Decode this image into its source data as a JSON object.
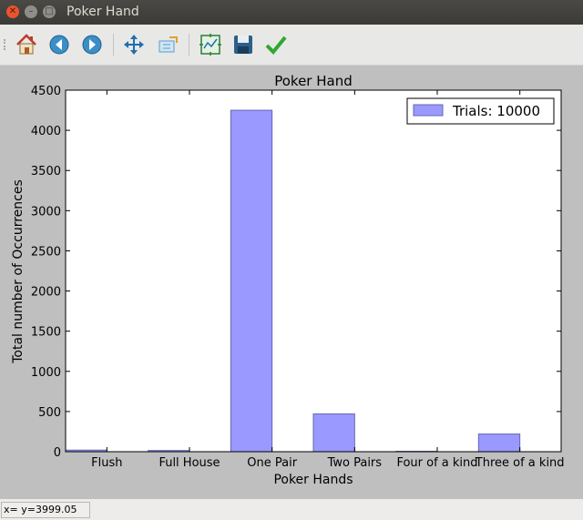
{
  "window": {
    "title": "Poker Hand"
  },
  "toolbar": {
    "buttons": [
      {
        "name": "home-button",
        "icon": "home-icon"
      },
      {
        "name": "back-button",
        "icon": "arrow-left-icon"
      },
      {
        "name": "forward-button",
        "icon": "arrow-right-icon"
      },
      {
        "name": "pan-button",
        "icon": "move-icon"
      },
      {
        "name": "zoom-button",
        "icon": "zoom-rect-icon"
      },
      {
        "name": "subplots-button",
        "icon": "subplots-icon"
      },
      {
        "name": "save-button",
        "icon": "save-icon"
      },
      {
        "name": "edit-axes-button",
        "icon": "checkmark-icon"
      }
    ]
  },
  "chart_data": {
    "type": "bar",
    "title": "Poker Hand",
    "xlabel": "Poker Hands",
    "ylabel": "Total number of Occurrences",
    "categories": [
      "Flush",
      "Full House",
      "One Pair",
      "Two Pairs",
      "Four of a kind",
      "Three of a kind"
    ],
    "series": [
      {
        "name": "Trials: 10000",
        "values": [
          20,
          15,
          4250,
          470,
          5,
          220
        ]
      }
    ],
    "ylim": [
      0,
      4500
    ],
    "yticks": [
      0,
      500,
      1000,
      1500,
      2000,
      2500,
      3000,
      3500,
      4000,
      4500
    ],
    "bar_color": "#9999ff",
    "bar_edge_color": "#6666b3",
    "legend_position": "top-right",
    "grid": false
  },
  "status": {
    "text": "x= y=3999.05"
  }
}
